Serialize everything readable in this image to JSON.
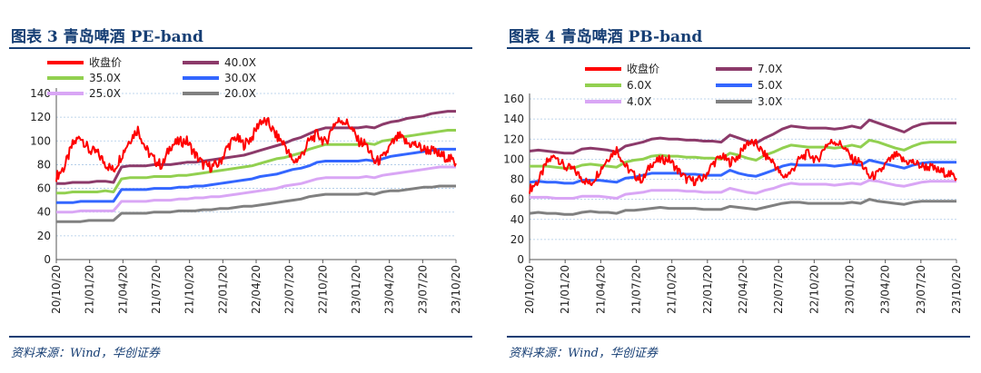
{
  "chart_data": [
    {
      "type": "line",
      "title": "图表 3 青岛啤酒 PE-band",
      "source": "资料来源：Wind，华创证券",
      "ylim": [
        0,
        140
      ],
      "yticks": [
        "0",
        "20",
        "40",
        "60",
        "80",
        "100",
        "120",
        "140"
      ],
      "x_labels": [
        "20/10/20",
        "21/01/20",
        "21/04/20",
        "21/07/20",
        "21/10/20",
        "22/01/20",
        "22/04/20",
        "22/07/20",
        "22/10/20",
        "23/01/20",
        "23/04/20",
        "23/07/20",
        "23/10/20"
      ],
      "grid": true,
      "legend_position": "top",
      "price": {
        "name": "收盘价",
        "color": "#ff0000",
        "values": [
          70,
          78,
          97,
          104,
          92,
          90,
          81,
          75,
          88,
          101,
          110,
          93,
          84,
          79,
          96,
          99,
          100,
          89,
          80,
          78,
          81,
          95,
          103,
          97,
          103,
          117,
          115,
          104,
          97,
          82,
          87,
          100,
          106,
          98,
          114,
          118,
          113,
          100,
          97,
          82,
          85,
          96,
          104,
          98,
          97,
          93,
          92,
          88,
          86,
          81
        ]
      },
      "series": [
        {
          "name": "40.0X",
          "color": "#8c3a6a",
          "values": [
            64,
            64,
            65,
            65,
            65,
            66,
            66,
            65,
            78,
            79,
            79,
            79,
            80,
            80,
            80,
            81,
            82,
            82,
            83,
            84,
            85,
            86,
            87,
            88,
            90,
            92,
            94,
            96,
            98,
            101,
            103,
            106,
            109,
            111,
            111,
            111,
            111,
            111,
            112,
            111,
            114,
            116,
            117,
            119,
            120,
            121,
            123,
            124,
            125,
            125
          ]
        },
        {
          "name": "35.0X",
          "color": "#92d050",
          "values": [
            56,
            56,
            57,
            57,
            57,
            57,
            58,
            57,
            68,
            69,
            69,
            69,
            70,
            70,
            70,
            71,
            71,
            72,
            73,
            74,
            75,
            76,
            77,
            78,
            79,
            81,
            83,
            85,
            86,
            88,
            90,
            93,
            95,
            97,
            97,
            97,
            97,
            97,
            98,
            97,
            100,
            101,
            103,
            104,
            105,
            106,
            107,
            108,
            109,
            109
          ]
        },
        {
          "name": "30.0X",
          "color": "#3366ff",
          "values": [
            48,
            48,
            48,
            49,
            49,
            49,
            49,
            49,
            59,
            59,
            59,
            59,
            60,
            60,
            60,
            61,
            61,
            62,
            62,
            63,
            64,
            65,
            66,
            67,
            68,
            70,
            71,
            72,
            74,
            76,
            77,
            79,
            82,
            83,
            83,
            83,
            83,
            83,
            84,
            83,
            85,
            87,
            88,
            89,
            90,
            91,
            92,
            93,
            93,
            93
          ]
        },
        {
          "name": "25.0X",
          "color": "#d9a6f5",
          "values": [
            40,
            40,
            40,
            41,
            41,
            41,
            41,
            41,
            49,
            49,
            49,
            49,
            50,
            50,
            50,
            51,
            51,
            52,
            52,
            53,
            53,
            54,
            55,
            56,
            57,
            58,
            59,
            60,
            62,
            63,
            64,
            66,
            68,
            69,
            69,
            69,
            69,
            69,
            70,
            69,
            71,
            72,
            73,
            74,
            75,
            76,
            77,
            78,
            78,
            78
          ]
        },
        {
          "name": "20.0X",
          "color": "#808080",
          "values": [
            32,
            32,
            32,
            32,
            33,
            33,
            33,
            33,
            39,
            39,
            39,
            39,
            40,
            40,
            40,
            41,
            41,
            41,
            42,
            42,
            43,
            43,
            44,
            45,
            45,
            46,
            47,
            48,
            49,
            50,
            51,
            53,
            54,
            55,
            55,
            55,
            55,
            55,
            56,
            55,
            57,
            58,
            58,
            59,
            60,
            61,
            61,
            62,
            62,
            62
          ]
        }
      ]
    },
    {
      "type": "line",
      "title": "图表 4 青岛啤酒 PB-band",
      "source": "资料来源：Wind，华创证券",
      "ylim": [
        0,
        160
      ],
      "yticks": [
        "0",
        "20",
        "40",
        "60",
        "80",
        "100",
        "120",
        "140",
        "160"
      ],
      "x_labels": [
        "20/10/20",
        "21/01/20",
        "21/04/20",
        "21/07/20",
        "21/10/20",
        "22/01/20",
        "22/04/20",
        "22/07/20",
        "22/10/20",
        "23/01/20",
        "23/04/20",
        "23/07/20",
        "23/10/20"
      ],
      "grid": true,
      "legend_position": "top",
      "price": {
        "name": "收盘价",
        "color": "#ff0000",
        "values": [
          70,
          78,
          97,
          104,
          92,
          90,
          81,
          75,
          88,
          101,
          110,
          93,
          84,
          79,
          96,
          99,
          100,
          89,
          80,
          78,
          81,
          95,
          103,
          97,
          103,
          117,
          115,
          104,
          97,
          82,
          87,
          100,
          106,
          98,
          114,
          118,
          113,
          100,
          97,
          82,
          85,
          96,
          104,
          98,
          97,
          93,
          92,
          88,
          86,
          81
        ]
      },
      "series": [
        {
          "name": "7.0X",
          "color": "#8c3a6a",
          "values": [
            108,
            109,
            108,
            107,
            106,
            106,
            110,
            111,
            110,
            109,
            107,
            113,
            115,
            117,
            120,
            121,
            120,
            120,
            119,
            119,
            118,
            118,
            117,
            124,
            121,
            118,
            116,
            121,
            125,
            130,
            133,
            132,
            131,
            131,
            131,
            130,
            131,
            133,
            131,
            139,
            136,
            133,
            130,
            127,
            132,
            135,
            136,
            136,
            136,
            136
          ]
        },
        {
          "name": "6.0X",
          "color": "#92d050",
          "values": [
            93,
            93,
            93,
            92,
            91,
            91,
            94,
            95,
            94,
            93,
            92,
            97,
            99,
            100,
            103,
            104,
            103,
            103,
            102,
            102,
            101,
            101,
            100,
            106,
            104,
            101,
            99,
            104,
            107,
            111,
            114,
            113,
            112,
            112,
            112,
            111,
            112,
            114,
            112,
            119,
            117,
            114,
            111,
            109,
            113,
            116,
            117,
            117,
            117,
            117
          ]
        },
        {
          "name": "5.0X",
          "color": "#3366ff",
          "values": [
            77,
            78,
            77,
            77,
            76,
            76,
            79,
            79,
            79,
            78,
            77,
            81,
            82,
            84,
            86,
            86,
            86,
            86,
            85,
            85,
            84,
            84,
            84,
            89,
            86,
            84,
            83,
            86,
            89,
            93,
            95,
            94,
            94,
            94,
            94,
            93,
            94,
            95,
            94,
            99,
            97,
            95,
            93,
            91,
            94,
            96,
            97,
            97,
            97,
            97
          ]
        },
        {
          "name": "4.0X",
          "color": "#d9a6f5",
          "values": [
            62,
            62,
            62,
            61,
            61,
            61,
            63,
            63,
            63,
            62,
            61,
            65,
            66,
            67,
            69,
            69,
            69,
            69,
            68,
            68,
            67,
            67,
            67,
            71,
            69,
            67,
            66,
            69,
            71,
            74,
            76,
            75,
            75,
            75,
            75,
            74,
            75,
            76,
            75,
            79,
            78,
            76,
            74,
            73,
            75,
            77,
            78,
            78,
            78,
            78
          ]
        },
        {
          "name": "3.0X",
          "color": "#808080",
          "values": [
            46,
            47,
            46,
            46,
            45,
            45,
            47,
            48,
            47,
            47,
            46,
            49,
            49,
            50,
            51,
            52,
            51,
            51,
            51,
            51,
            50,
            50,
            50,
            53,
            52,
            51,
            50,
            52,
            54,
            56,
            57,
            57,
            56,
            56,
            56,
            56,
            56,
            57,
            56,
            60,
            58,
            57,
            56,
            55,
            57,
            58,
            58,
            58,
            58,
            58
          ]
        }
      ]
    }
  ]
}
